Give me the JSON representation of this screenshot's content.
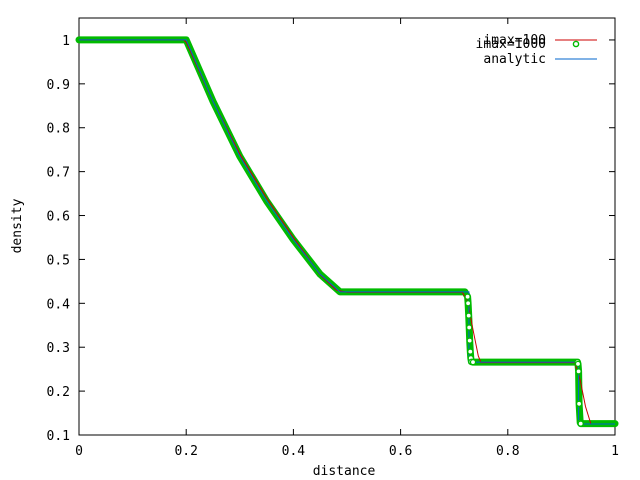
{
  "chart_data": {
    "type": "line",
    "xlabel": "distance",
    "ylabel": "density",
    "xlim": [
      0,
      1
    ],
    "ylim": [
      0.1,
      1.05
    ],
    "x_ticks": [
      0,
      0.2,
      0.4,
      0.6,
      0.8,
      1
    ],
    "y_ticks": [
      0.1,
      0.2,
      0.3,
      0.4,
      0.5,
      0.6,
      0.7,
      0.8,
      0.9,
      1
    ],
    "x_tick_labels": [
      "0",
      "0.2",
      "0.4",
      "0.6",
      "0.8",
      "1"
    ],
    "y_tick_labels": [
      "0.1",
      "0.2",
      "0.3",
      "0.4",
      "0.5",
      "0.6",
      "0.7",
      "0.8",
      "0.9",
      "1"
    ],
    "grid": false,
    "legend_position": "top-right",
    "series": [
      {
        "name": "imax=100",
        "style": "line",
        "color": "#cc0000",
        "x": [
          0,
          0.195,
          0.2,
          0.25,
          0.3,
          0.35,
          0.4,
          0.45,
          0.48,
          0.5,
          0.715,
          0.725,
          0.735,
          0.745,
          0.75,
          0.925,
          0.935,
          0.945,
          0.955,
          1.0
        ],
        "y": [
          1.0,
          1.0,
          0.995,
          0.86,
          0.74,
          0.64,
          0.55,
          0.465,
          0.43,
          0.425,
          0.425,
          0.405,
          0.34,
          0.28,
          0.265,
          0.265,
          0.225,
          0.165,
          0.125,
          0.125
        ]
      },
      {
        "name": "imax=1000",
        "style": "points",
        "color": "#00bb00",
        "x": [
          0,
          0.2,
          0.25,
          0.3,
          0.35,
          0.4,
          0.45,
          0.487,
          0.6,
          0.7,
          0.72,
          0.725,
          0.726,
          0.727,
          0.728,
          0.729,
          0.73,
          0.731,
          0.732,
          0.735,
          0.8,
          0.9,
          0.93,
          0.931,
          0.932,
          0.933,
          0.935,
          0.936,
          0.95,
          1.0
        ],
        "y": [
          1.0,
          1.0,
          0.86,
          0.735,
          0.633,
          0.545,
          0.466,
          0.426,
          0.426,
          0.426,
          0.426,
          0.415,
          0.4,
          0.372,
          0.345,
          0.315,
          0.29,
          0.275,
          0.267,
          0.266,
          0.266,
          0.266,
          0.266,
          0.262,
          0.245,
          0.171,
          0.128,
          0.126,
          0.126,
          0.126
        ]
      },
      {
        "name": "analytic",
        "style": "line",
        "color": "#0066cc",
        "x": [
          0,
          0.2,
          0.25,
          0.3,
          0.35,
          0.4,
          0.45,
          0.487,
          0.7275,
          0.7275,
          0.932,
          0.932,
          1.0
        ],
        "y": [
          1.0,
          1.0,
          0.86,
          0.735,
          0.633,
          0.545,
          0.466,
          0.426,
          0.426,
          0.266,
          0.266,
          0.125,
          0.125
        ]
      }
    ]
  }
}
